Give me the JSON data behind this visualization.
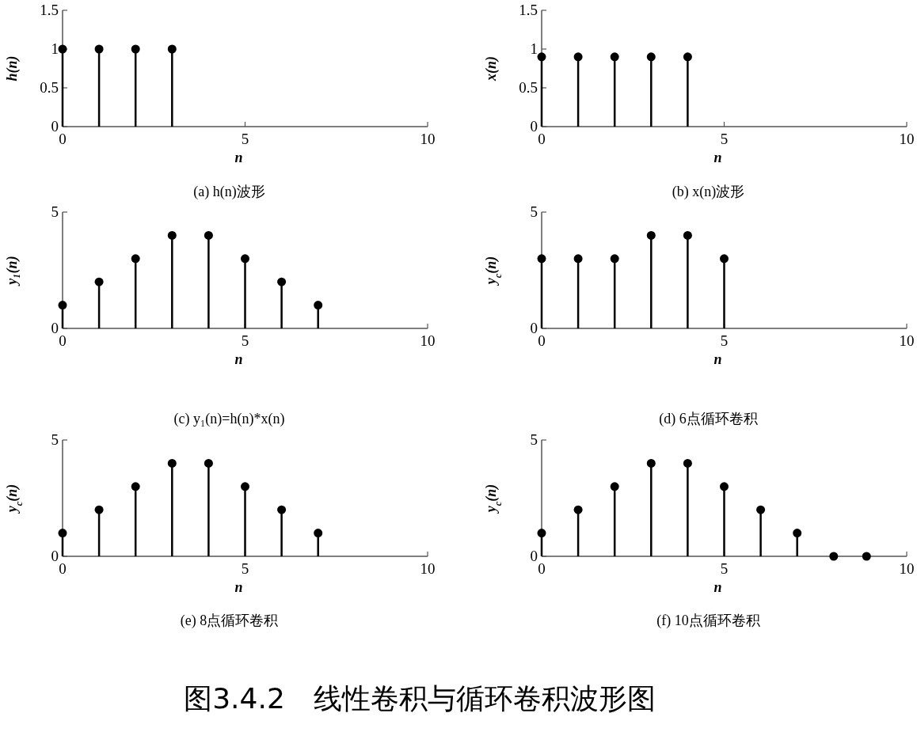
{
  "chart_data": [
    {
      "type": "lollipop",
      "title": "(a) h(n)波形",
      "xlabel": "n",
      "ylabel": "h(n)",
      "x": [
        0,
        1,
        2,
        3
      ],
      "values": [
        1,
        1,
        1,
        1
      ],
      "color": "#000000",
      "marker": "circle",
      "xlim": [
        0,
        10
      ],
      "ylim": [
        0,
        1.5
      ],
      "xticks": [
        0,
        5,
        10
      ],
      "yticks": [
        0,
        0.5,
        1,
        1.5
      ]
    },
    {
      "type": "lollipop",
      "title": "(b) x(n)波形",
      "xlabel": "n",
      "ylabel": "x(n)",
      "x": [
        0,
        1,
        2,
        3,
        4
      ],
      "values": [
        0.9,
        0.9,
        0.9,
        0.9,
        0.9
      ],
      "color": "#000000",
      "marker": "circle",
      "xlim": [
        0,
        10
      ],
      "ylim": [
        0,
        1.5
      ],
      "xticks": [
        0,
        5,
        10
      ],
      "yticks": [
        0,
        0.5,
        1,
        1.5
      ]
    },
    {
      "type": "lollipop",
      "title": "(c) y₁(n)=h(n)*x(n)",
      "xlabel": "n",
      "ylabel": "y₁(n)",
      "x": [
        0,
        1,
        2,
        3,
        4,
        5,
        6,
        7
      ],
      "values": [
        1,
        2,
        3,
        4,
        4,
        3,
        2,
        1
      ],
      "color": "#000000",
      "marker": "circle",
      "xlim": [
        0,
        10
      ],
      "ylim": [
        0,
        5
      ],
      "xticks": [
        0,
        5,
        10
      ],
      "yticks": [
        0,
        5
      ]
    },
    {
      "type": "lollipop",
      "title": "(d) 6点循环卷积",
      "xlabel": "n",
      "ylabel": "y$_{c}$(n)",
      "x": [
        0,
        1,
        2,
        3,
        4,
        5
      ],
      "values": [
        3,
        3,
        3,
        4,
        4,
        3
      ],
      "color": "#000000",
      "marker": "circle",
      "xlim": [
        0,
        10
      ],
      "ylim": [
        0,
        5
      ],
      "xticks": [
        0,
        5,
        10
      ],
      "yticks": [
        0,
        5
      ]
    },
    {
      "type": "lollipop",
      "title": "(e) 8点循环卷积",
      "xlabel": "n",
      "ylabel": "y$_{c}$(n)",
      "x": [
        0,
        1,
        2,
        3,
        4,
        5,
        6,
        7
      ],
      "values": [
        1,
        2,
        3,
        4,
        4,
        3,
        2,
        1
      ],
      "color": "#000000",
      "marker": "circle",
      "xlim": [
        0,
        10
      ],
      "ylim": [
        0,
        5
      ],
      "xticks": [
        0,
        5,
        10
      ],
      "yticks": [
        0,
        5
      ]
    },
    {
      "type": "lollipop",
      "title": "(f) 10点循环卷积",
      "xlabel": "n",
      "ylabel": "y$_{c}$(n)",
      "x": [
        0,
        1,
        2,
        3,
        4,
        5,
        6,
        7,
        8,
        8.9
      ],
      "values": [
        1,
        2,
        3,
        4,
        4,
        3,
        2,
        1,
        0,
        0
      ],
      "color": "#000000",
      "marker": "circle",
      "xlim": [
        0,
        10
      ],
      "ylim": [
        0,
        5
      ],
      "xticks": [
        0,
        5,
        10
      ],
      "yticks": [
        0,
        5
      ]
    },
    {
      "type": "other",
      "title": "图3.4.2　线性卷积与循环卷积波形图"
    }
  ]
}
